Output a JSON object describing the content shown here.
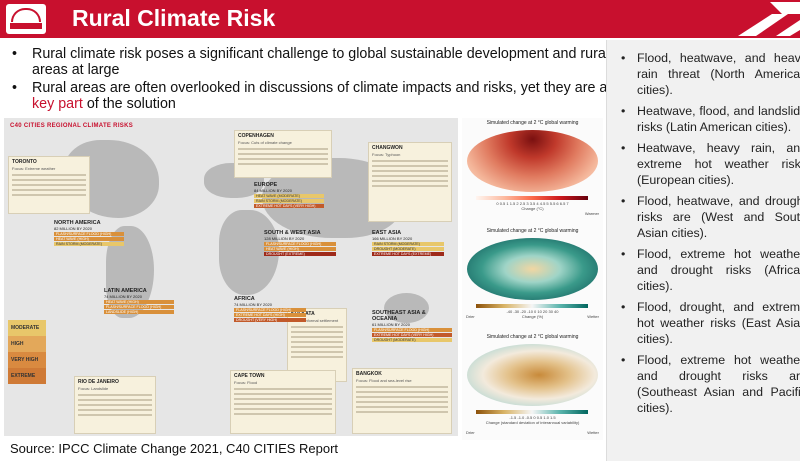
{
  "header": {
    "title": "Rural Climate Risk",
    "color": "#c8102e"
  },
  "bullets": [
    {
      "text": "Rural climate risk poses a significant challenge to global sustainable development and rural areas at large"
    },
    {
      "before": "Rural areas are often overlooked in discussions of climate impacts and risks, yet they are a ",
      "highlight": "key part",
      "after": " of the solution"
    }
  ],
  "bullet_marker": "•",
  "right_panel": {
    "items": [
      "Flood, heatwave, and heavy rain threat (North American cities).",
      "Heatwave, flood, and landslide risks (Latin American cities).",
      "Heatwave, heavy rain, and extreme hot weather risks (European cities).",
      "Flood, heatwave, and drought risks are (West and South Asian cities).",
      "Flood, extreme hot weather, and drought risks (African cities).",
      "Flood, drought, and extreme hot weather risks (East Asian cities).",
      "Flood, extreme hot weather, and drought risks are (Southeast Asian and Pacific cities)."
    ]
  },
  "map": {
    "title": "C40 CITIES REGIONAL CLIMATE RISKS",
    "cards": [
      {
        "name": "TORONTO",
        "subtitle": "Focus: Extreme weather"
      },
      {
        "name": "COPENHAGEN",
        "subtitle": "Focus: Cuts of climate change"
      },
      {
        "name": "CHANGWON",
        "subtitle": "Focus: Typhoon"
      },
      {
        "name": "KOLKATA",
        "subtitle": "Focus: Informal settlement"
      },
      {
        "name": "RIO DE JANEIRO",
        "subtitle": "Focus: Landslide"
      },
      {
        "name": "CAPE TOWN",
        "subtitle": "Focus: Flood"
      },
      {
        "name": "BANGKOK",
        "subtitle": "Focus: Flood and sea-level rise"
      }
    ],
    "regions": [
      {
        "name": "NORTH AMERICA",
        "pop": "82 MILLION BY 2020",
        "risks": [
          "FLASH/SURFACE FLOOD (HIGH)",
          "HEAT WAVE (HIGH)",
          "RAIN STORM (MODERATE)"
        ]
      },
      {
        "name": "EUROPE",
        "pop": "84 MILLION BY 2020",
        "risks": [
          "HEAT WAVE (MODERATE)",
          "RAIN STORM (MODERATE)",
          "EXTREME HOT DAYS (VERY HIGH)"
        ]
      },
      {
        "name": "SOUTH & WEST ASIA",
        "pop": "128 MILLION BY 2020",
        "risks": [
          "FLASH/SURFACE FLOOD (HIGH)",
          "HEAT WAVE (HIGH)",
          "DROUGHT (EXTREME)"
        ]
      },
      {
        "name": "EAST ASIA",
        "pop": "166 MILLION BY 2020",
        "risks": [
          "RAIN STORM (MODERATE)",
          "DROUGHT (MODERATE)",
          "EXTREME HOT DAYS (EXTREME)"
        ]
      },
      {
        "name": "LATIN AMERICA",
        "pop": "74 MILLION BY 2020",
        "risks": [
          "HEAT WAVE (HIGH)",
          "FLASH/SURFACE FLOOD (HIGH)",
          "LANDSLIDE (HIGH)"
        ]
      },
      {
        "name": "AFRICA",
        "pop": "74 MILLION BY 2020",
        "risks": [
          "FLASH/SURFACE FLOOD (HIGH)",
          "EXTREME HOT DAYS (HIGH)",
          "DROUGHT (VERY HIGH)"
        ]
      },
      {
        "name": "SOUTHEAST ASIA & OCEANIA",
        "pop": "61 MILLION BY 2020",
        "risks": [
          "FLASH/SURFACE FLOOD (HIGH)",
          "EXTREME HOT DAYS (VERY HIGH)",
          "DROUGHT (MODERATE)"
        ]
      }
    ],
    "legend": [
      "MODERATE",
      "HIGH",
      "VERY HIGH",
      "EXTREME"
    ],
    "legend_colors": [
      "#e8c76a",
      "#d9903a",
      "#c25a2a",
      "#9e2a1a"
    ]
  },
  "climate": {
    "fig1": {
      "title": "Simulated change at 2 °C global warming",
      "ticks": "0 0.5 1 1.5 2 2.5 3 3.5 4 4.5 5 5.5 6 6.5 7",
      "label": "Change (°C)",
      "low": "",
      "high": "Warmer"
    },
    "fig2": {
      "title": "Simulated change at 2 °C global warming",
      "ticks": "-40 -30 -20 -10 0 10 20 30 40",
      "label": "Change (%)",
      "low": "Drier",
      "high": "Wetter"
    },
    "fig3": {
      "title": "Simulated change at 2 °C global warming",
      "ticks": "-1.5 -1.0 -0.5 0 0.5 1.0 1.5",
      "label": "Change (standard deviation of interannual variability)",
      "low": "Drier",
      "high": "Wetter"
    }
  },
  "source": "Source: IPCC Climate Change 2021, C40 CITIES Report"
}
